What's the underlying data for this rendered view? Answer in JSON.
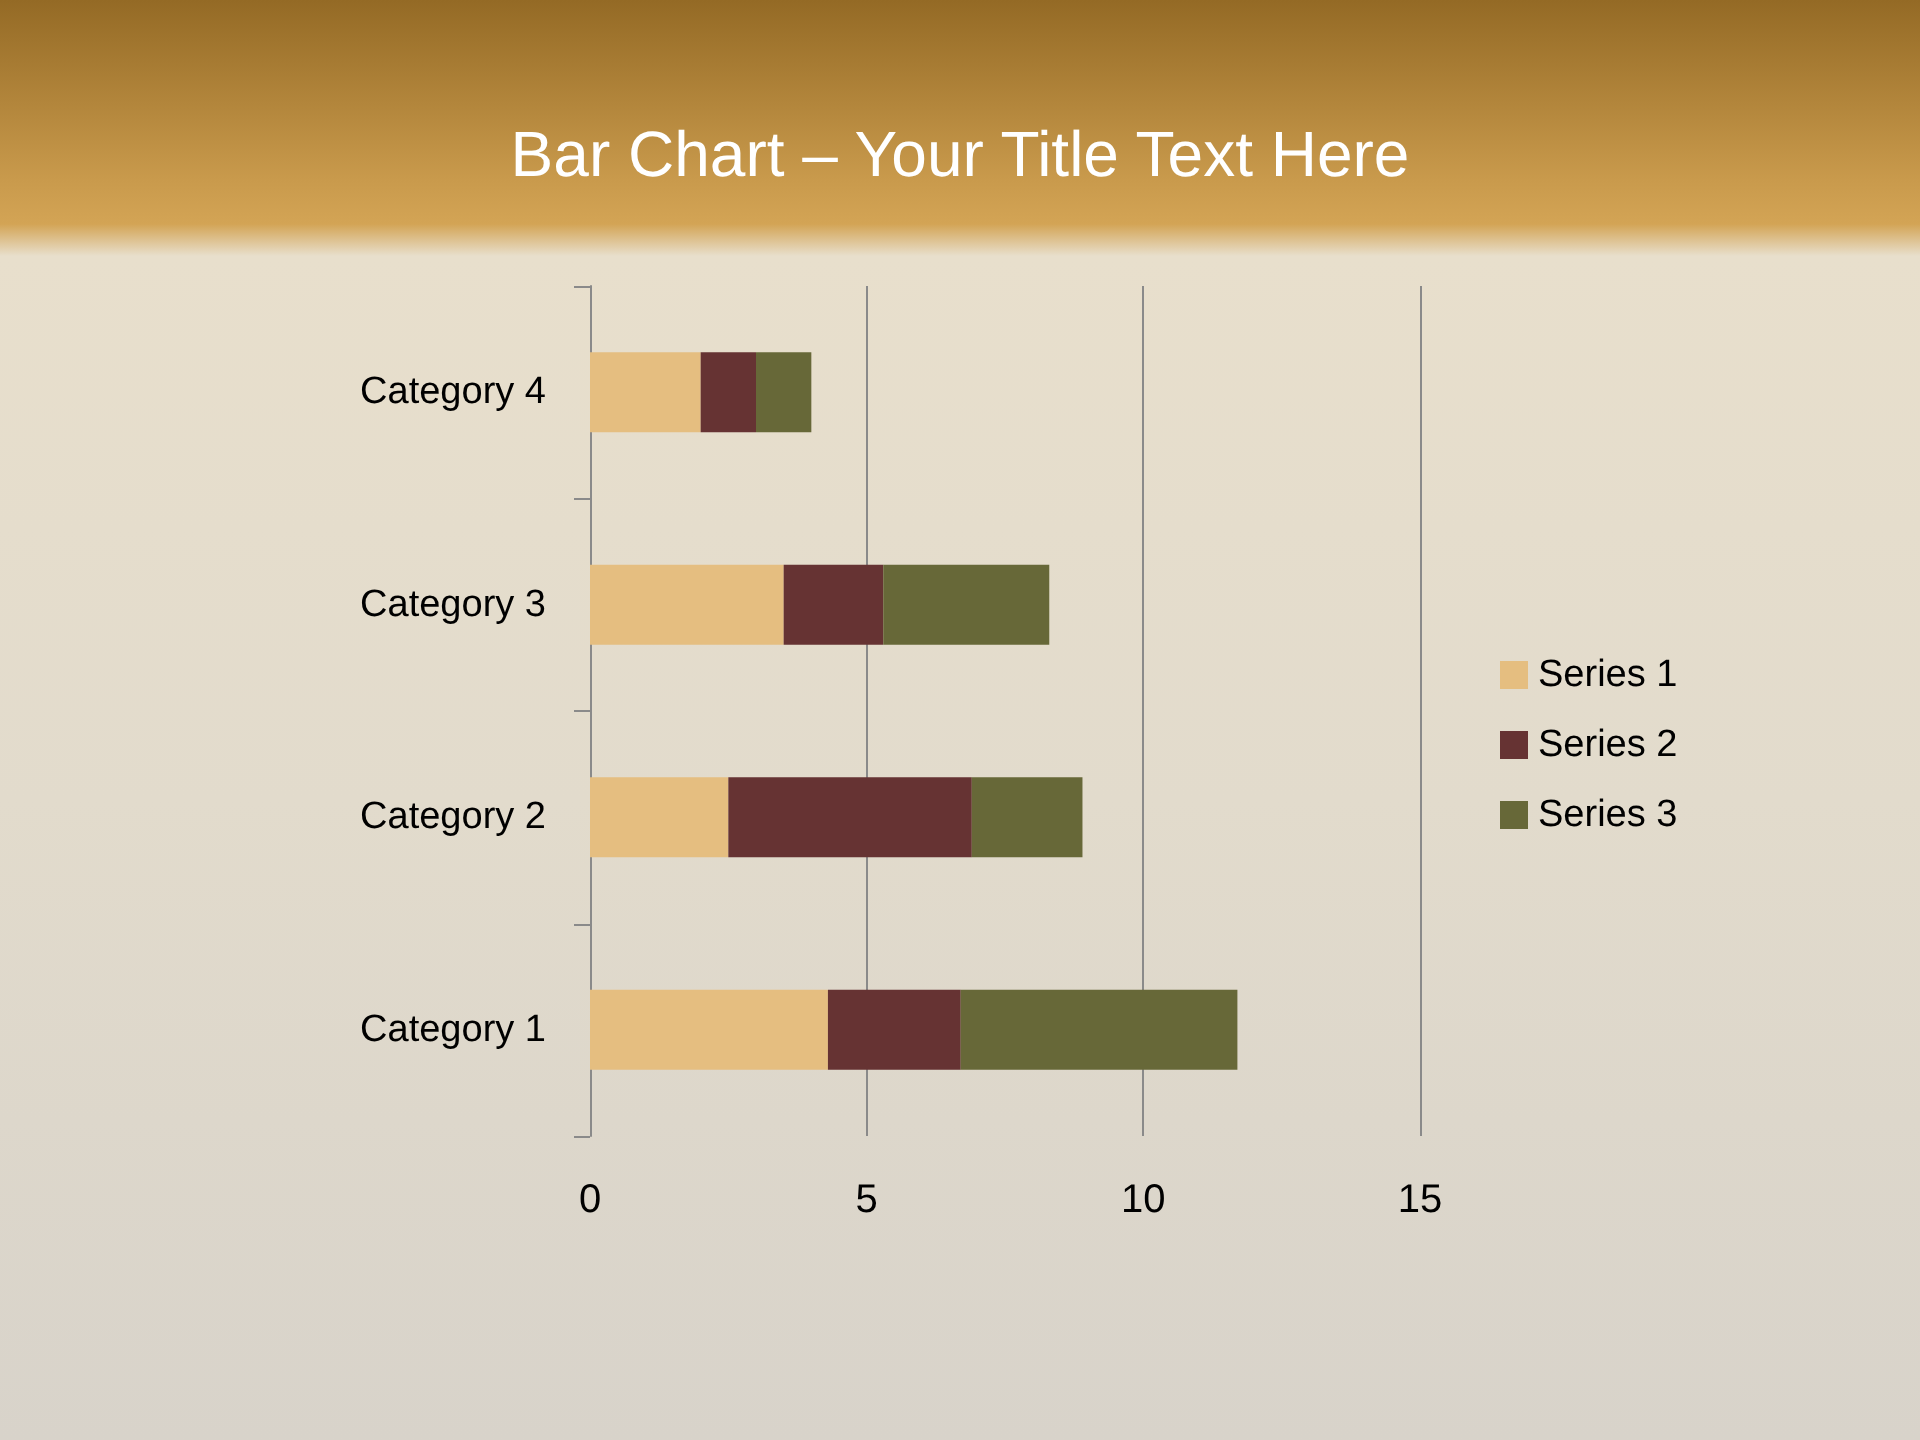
{
  "chart_data": {
    "type": "bar",
    "title": "Bar Chart – Your Title Text Here",
    "orientation": "horizontal",
    "stacked": true,
    "categories": [
      "Category 4",
      "Category 3",
      "Category 2",
      "Category 1"
    ],
    "series": [
      {
        "name": "Series 1",
        "color": "#e5be80",
        "values": [
          2,
          3.5,
          2.5,
          4.3
        ]
      },
      {
        "name": "Series 2",
        "color": "#663333",
        "values": [
          1,
          1.8,
          4.4,
          2.4
        ]
      },
      {
        "name": "Series 3",
        "color": "#676838",
        "values": [
          1,
          3,
          2,
          5
        ]
      }
    ],
    "xlim": [
      0,
      15
    ],
    "xticks": [
      0,
      5,
      10,
      15
    ],
    "grid": "x",
    "legend": "right"
  }
}
